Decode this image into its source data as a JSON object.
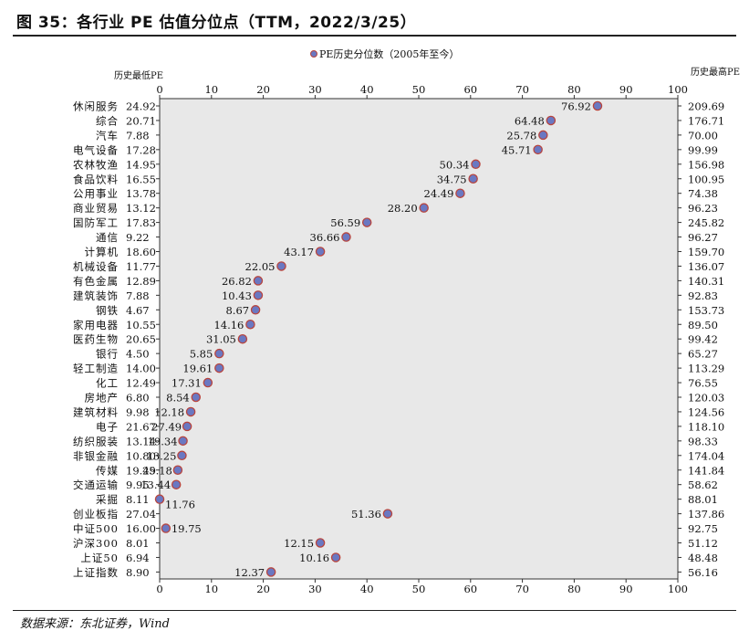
{
  "figure": {
    "title": "图 35：各行业 PE 估值分位点（TTM，2022/3/25）",
    "source": "数据来源：东北证券，Wind"
  },
  "colors": {
    "plot_background": "#e8e8e8",
    "marker_fill": "#6a78c2",
    "marker_edge": "#b8453e",
    "axis": "#333333"
  },
  "chart_data": {
    "type": "scatter",
    "legend": {
      "label": "PE历史分位数（2005年至今）",
      "position": "top-center"
    },
    "left_column_label": "历史最低PE",
    "right_column_label": "历史最高PE",
    "xlim": [
      0,
      100
    ],
    "xticks": [
      0,
      10,
      20,
      30,
      40,
      50,
      60,
      70,
      80,
      90,
      100
    ],
    "grid": false,
    "rows": [
      {
        "name": "休闲服务",
        "min_pe": "24.92",
        "percentile": 84.5,
        "current_pe": "76.92",
        "max_pe": "209.69"
      },
      {
        "name": "综合",
        "min_pe": "20.71",
        "percentile": 75.5,
        "current_pe": "64.48",
        "max_pe": "176.71"
      },
      {
        "name": "汽车",
        "min_pe": "7.88",
        "percentile": 74.0,
        "current_pe": "25.78",
        "max_pe": "70.00"
      },
      {
        "name": "电气设备",
        "min_pe": "17.28",
        "percentile": 73.0,
        "current_pe": "45.71",
        "max_pe": "99.99"
      },
      {
        "name": "农林牧渔",
        "min_pe": "14.95",
        "percentile": 61.0,
        "current_pe": "50.34",
        "max_pe": "156.98"
      },
      {
        "name": "食品饮料",
        "min_pe": "16.55",
        "percentile": 60.5,
        "current_pe": "34.75",
        "max_pe": "100.95"
      },
      {
        "name": "公用事业",
        "min_pe": "13.78",
        "percentile": 58.0,
        "current_pe": "24.49",
        "max_pe": "74.38"
      },
      {
        "name": "商业贸易",
        "min_pe": "13.12",
        "percentile": 51.0,
        "current_pe": "28.20",
        "max_pe": "96.23"
      },
      {
        "name": "国防军工",
        "min_pe": "17.83",
        "percentile": 40.0,
        "current_pe": "56.59",
        "max_pe": "245.82"
      },
      {
        "name": "通信",
        "min_pe": "9.22",
        "percentile": 36.0,
        "current_pe": "36.66",
        "max_pe": "96.27"
      },
      {
        "name": "计算机",
        "min_pe": "18.60",
        "percentile": 31.0,
        "current_pe": "43.17",
        "max_pe": "159.70"
      },
      {
        "name": "机械设备",
        "min_pe": "11.77",
        "percentile": 23.5,
        "current_pe": "22.05",
        "max_pe": "136.07"
      },
      {
        "name": "有色金属",
        "min_pe": "12.89",
        "percentile": 19.0,
        "current_pe": "26.82",
        "max_pe": "140.31"
      },
      {
        "name": "建筑装饰",
        "min_pe": "7.88",
        "percentile": 19.0,
        "current_pe": "10.43",
        "max_pe": "92.83"
      },
      {
        "name": "钢铁",
        "min_pe": "4.67",
        "percentile": 18.5,
        "current_pe": "8.67",
        "max_pe": "153.73"
      },
      {
        "name": "家用电器",
        "min_pe": "10.55",
        "percentile": 17.5,
        "current_pe": "14.16",
        "max_pe": "89.50"
      },
      {
        "name": "医药生物",
        "min_pe": "20.65",
        "percentile": 16.0,
        "current_pe": "31.05",
        "max_pe": "99.42"
      },
      {
        "name": "银行",
        "min_pe": "4.50",
        "percentile": 11.5,
        "current_pe": "5.85",
        "max_pe": "65.27"
      },
      {
        "name": "轻工制造",
        "min_pe": "14.00",
        "percentile": 11.5,
        "current_pe": "19.61",
        "max_pe": "113.29"
      },
      {
        "name": "化工",
        "min_pe": "12.49",
        "percentile": 9.3,
        "current_pe": "17.31",
        "max_pe": "76.55"
      },
      {
        "name": "房地产",
        "min_pe": "6.80",
        "percentile": 7.0,
        "current_pe": "8.54",
        "max_pe": "120.03"
      },
      {
        "name": "建筑材料",
        "min_pe": "9.98",
        "percentile": 6.0,
        "current_pe": "12.18",
        "max_pe": "124.56"
      },
      {
        "name": "电子",
        "min_pe": "21.67",
        "percentile": 5.3,
        "current_pe": "27.49",
        "max_pe": "118.10"
      },
      {
        "name": "纺织服装",
        "min_pe": "13.14",
        "percentile": 4.5,
        "current_pe": "19.34",
        "max_pe": "98.33"
      },
      {
        "name": "非银金融",
        "min_pe": "10.80",
        "percentile": 4.3,
        "current_pe": "13.25",
        "max_pe": "174.04"
      },
      {
        "name": "传媒",
        "min_pe": "19.49",
        "percentile": 3.5,
        "current_pe": "25.18",
        "max_pe": "141.84"
      },
      {
        "name": "交通运输",
        "min_pe": "9.95",
        "percentile": 3.2,
        "current_pe": "13.44",
        "max_pe": "58.62"
      },
      {
        "name": "采掘",
        "min_pe": "8.11",
        "percentile": 0.0,
        "current_pe": "11.76",
        "max_pe": "88.01"
      },
      {
        "name": "创业板指",
        "min_pe": "27.04",
        "percentile": 44.0,
        "current_pe": "51.36",
        "max_pe": "137.86"
      },
      {
        "name": "中证500",
        "min_pe": "16.00",
        "percentile": 1.2,
        "current_pe": "19.75",
        "max_pe": "92.75"
      },
      {
        "name": "沪深300",
        "min_pe": "8.01",
        "percentile": 31.0,
        "current_pe": "12.15",
        "max_pe": "51.12"
      },
      {
        "name": "上证50",
        "min_pe": "6.94",
        "percentile": 34.0,
        "current_pe": "10.16",
        "max_pe": "48.48"
      },
      {
        "name": "上证指数",
        "min_pe": "8.90",
        "percentile": 21.5,
        "current_pe": "12.37",
        "max_pe": "56.16"
      }
    ]
  }
}
